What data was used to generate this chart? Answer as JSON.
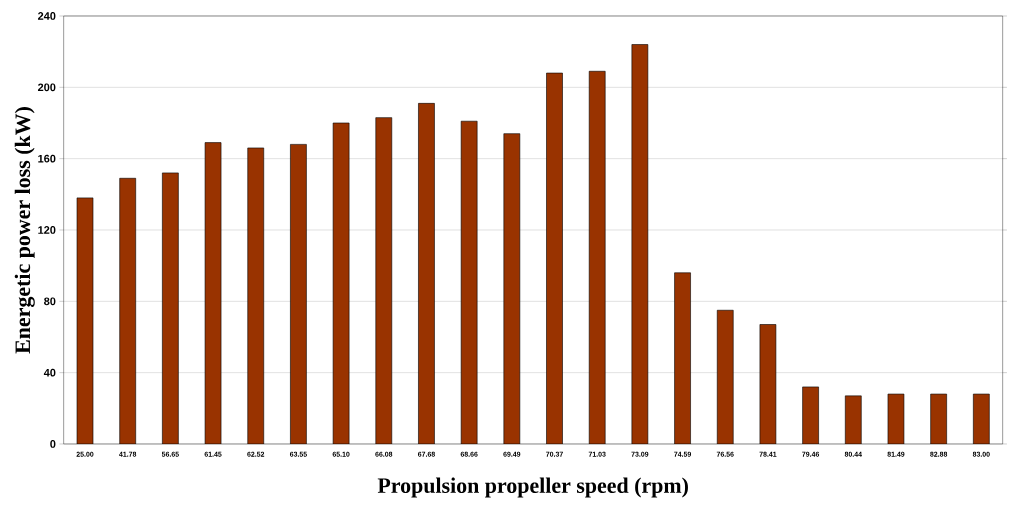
{
  "chart_data": {
    "type": "bar",
    "xlabel": "Propulsion propeller speed (rpm)",
    "ylabel": "Energetic power loss (kW)",
    "categories": [
      "25.00",
      "41.78",
      "56.65",
      "61.45",
      "62.52",
      "63.55",
      "65.10",
      "66.08",
      "67.68",
      "68.66",
      "69.49",
      "70.37",
      "71.03",
      "73.09",
      "74.59",
      "76.56",
      "78.41",
      "79.46",
      "80.44",
      "81.49",
      "82.88",
      "83.00"
    ],
    "values": [
      138,
      149,
      152,
      169,
      166,
      168,
      180,
      183,
      191,
      181,
      174,
      208,
      209,
      224,
      96,
      75,
      67,
      32,
      27,
      28,
      28,
      28
    ],
    "color": "#993300",
    "ylim": [
      0,
      240
    ],
    "yticks": [
      0,
      40,
      80,
      120,
      160,
      200,
      240
    ],
    "grid": "y"
  }
}
